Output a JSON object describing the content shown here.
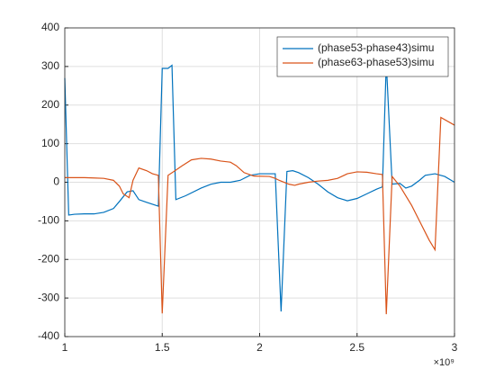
{
  "chart_data": {
    "type": "line",
    "x_exponent_label": "×10⁹",
    "xlim": [
      1,
      3
    ],
    "xticks": [
      1,
      1.5,
      2,
      2.5,
      3
    ],
    "ylim": [
      -400,
      400
    ],
    "yticks": [
      -400,
      -300,
      -200,
      -100,
      0,
      100,
      200,
      300,
      400
    ],
    "grid": true,
    "legend": "top-right",
    "series": [
      {
        "name": "(phase53-phase43)simu",
        "color": "#0072bd",
        "x": [
          1,
          1.02,
          1.05,
          1.1,
          1.15,
          1.2,
          1.25,
          1.28,
          1.32,
          1.35,
          1.38,
          1.42,
          1.45,
          1.48,
          1.5,
          1.53,
          1.55,
          1.57,
          1.62,
          1.7,
          1.75,
          1.8,
          1.85,
          1.9,
          1.95,
          2.0,
          2.05,
          2.08,
          2.11,
          2.14,
          2.17,
          2.2,
          2.25,
          2.3,
          2.35,
          2.4,
          2.45,
          2.5,
          2.55,
          2.6,
          2.63,
          2.65,
          2.68,
          2.72,
          2.75,
          2.78,
          2.82,
          2.85,
          2.9,
          2.95,
          3.0
        ],
        "values": [
          270,
          -85,
          -83,
          -82,
          -82,
          -78,
          -68,
          -50,
          -25,
          -22,
          -45,
          -52,
          -57,
          -62,
          295,
          295,
          303,
          -45,
          -35,
          -15,
          -5,
          0,
          0,
          5,
          18,
          22,
          22,
          22,
          -335,
          28,
          30,
          25,
          12,
          -5,
          -25,
          -40,
          -48,
          -42,
          -30,
          -18,
          -12,
          310,
          -5,
          -3,
          -15,
          -10,
          5,
          18,
          22,
          15,
          0
        ]
      },
      {
        "name": "(phase63-phase53)simu",
        "color": "#d95319",
        "x": [
          1,
          1.05,
          1.1,
          1.15,
          1.2,
          1.25,
          1.28,
          1.3,
          1.33,
          1.35,
          1.38,
          1.42,
          1.45,
          1.48,
          1.5,
          1.53,
          1.56,
          1.6,
          1.65,
          1.7,
          1.75,
          1.8,
          1.85,
          1.88,
          1.92,
          1.97,
          2.05,
          2.08,
          2.1,
          2.15,
          2.18,
          2.2,
          2.25,
          2.3,
          2.35,
          2.4,
          2.45,
          2.5,
          2.55,
          2.6,
          2.63,
          2.65,
          2.68,
          2.72,
          2.78,
          2.82,
          2.87,
          2.9,
          2.93,
          3.0
        ],
        "values": [
          12,
          12,
          12,
          11,
          10,
          5,
          -10,
          -30,
          -40,
          5,
          37,
          30,
          22,
          18,
          -340,
          18,
          28,
          42,
          58,
          62,
          60,
          55,
          52,
          43,
          25,
          16,
          15,
          10,
          5,
          -5,
          -8,
          -5,
          0,
          3,
          5,
          10,
          22,
          27,
          26,
          22,
          20,
          -342,
          15,
          -10,
          -60,
          -100,
          -150,
          -175,
          168,
          148
        ]
      }
    ]
  }
}
